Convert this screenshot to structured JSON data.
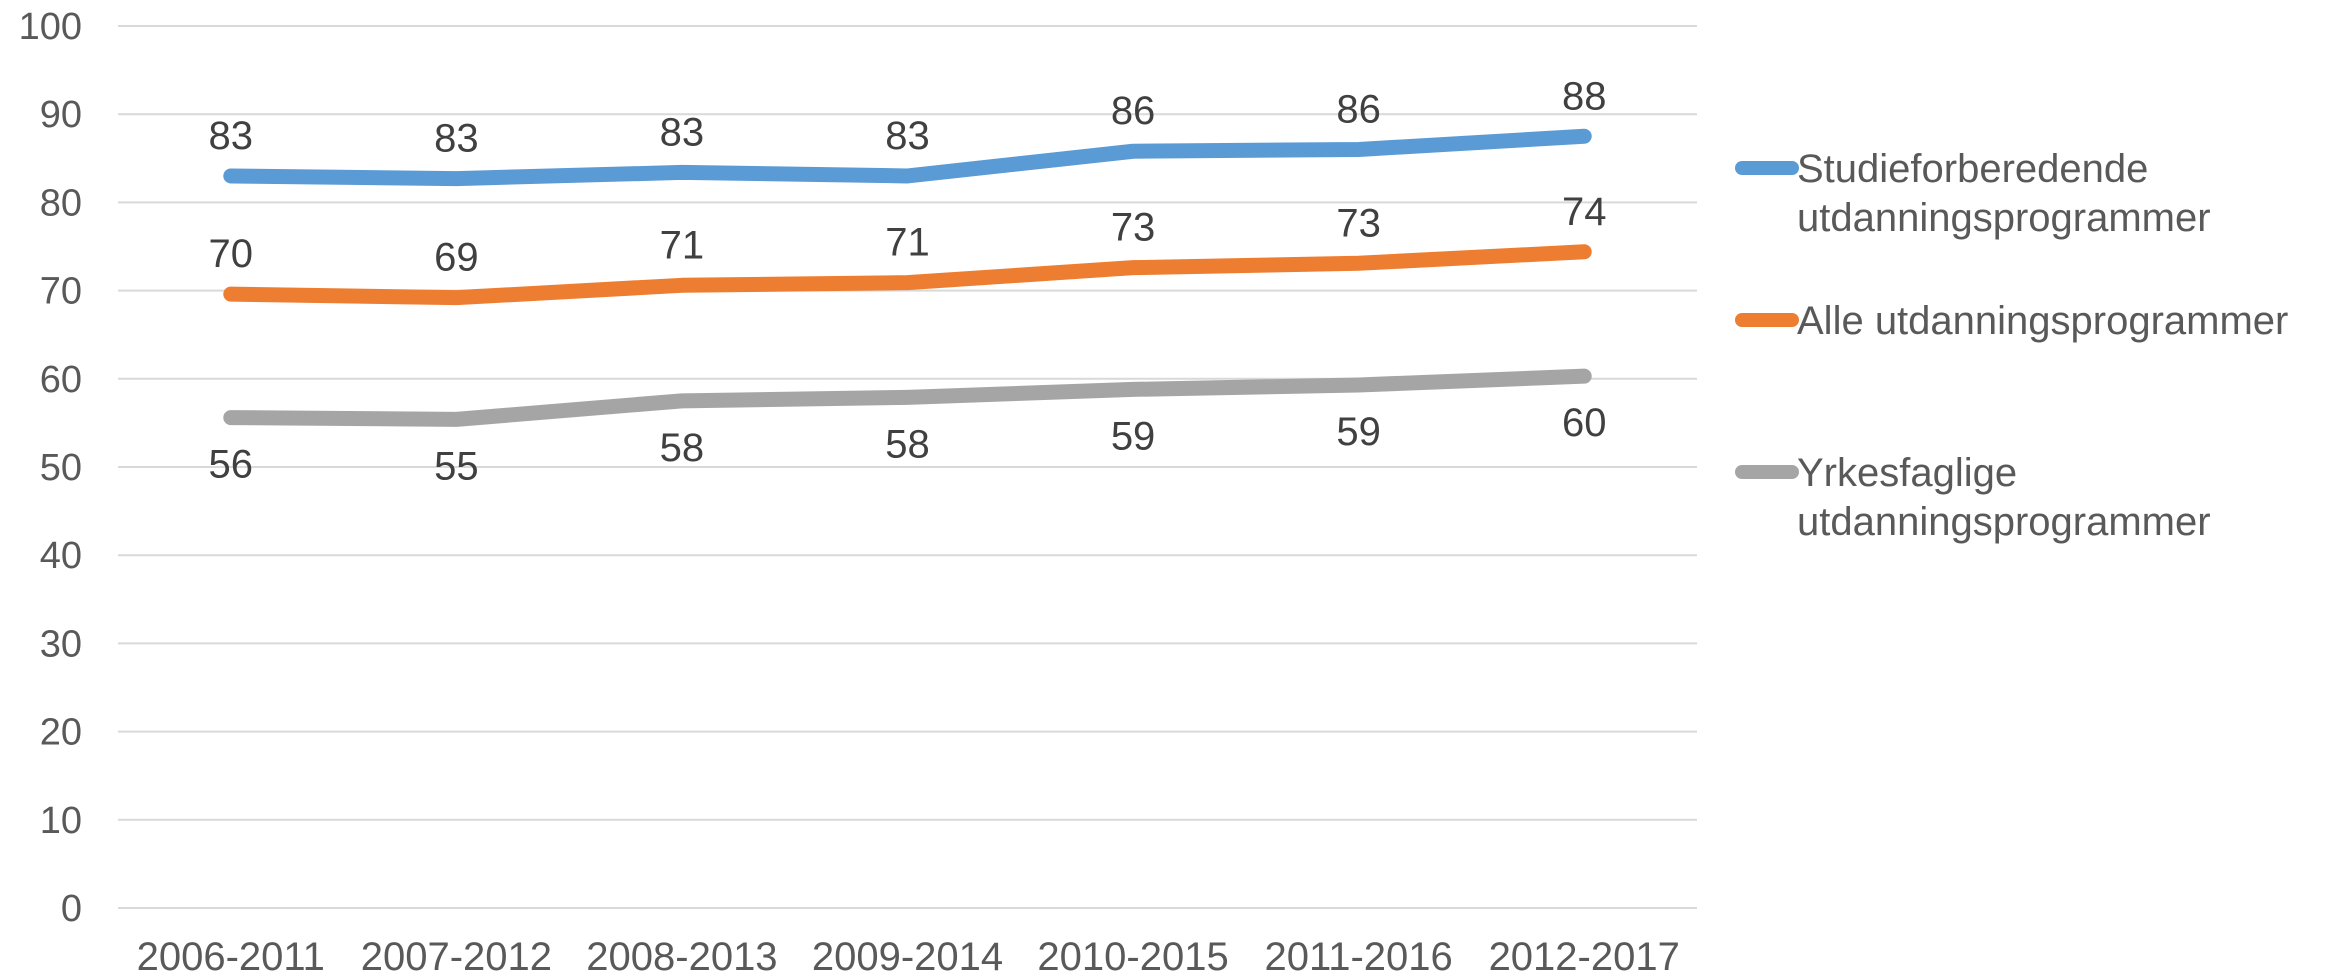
{
  "chart_data": {
    "type": "line",
    "categories": [
      "2006-2011",
      "2007-2012",
      "2008-2013",
      "2009-2014",
      "2010-2015",
      "2011-2016",
      "2012-2017"
    ],
    "ylim": [
      0,
      100
    ],
    "yticks": [
      0,
      10,
      20,
      30,
      40,
      50,
      60,
      70,
      80,
      90,
      100
    ],
    "grid": true,
    "legend_position": "right",
    "series": [
      {
        "name": "Studieforberedende utdanningsprogrammer",
        "legend_lines": [
          "Studieforberedende",
          "utdanningsprogrammer"
        ],
        "color": "#5b9bd5",
        "values": [
          83,
          82.7,
          83.4,
          83,
          85.8,
          86,
          87.5
        ],
        "labels": [
          "83",
          "83",
          "83",
          "83",
          "86",
          "86",
          "88"
        ],
        "label_position": "above"
      },
      {
        "name": "Alle utdanningsprogrammer",
        "legend_lines": [
          "Alle utdanningsprogrammer"
        ],
        "color": "#ed7d31",
        "values": [
          69.6,
          69.2,
          70.6,
          70.9,
          72.6,
          73.1,
          74.4
        ],
        "labels": [
          "70",
          "69",
          "71",
          "71",
          "73",
          "73",
          "74"
        ],
        "label_position": "above"
      },
      {
        "name": "Yrkesfaglige utdanningsprogrammer",
        "legend_lines": [
          "Yrkesfaglige",
          "utdanningsprogrammer"
        ],
        "color": "#a5a5a5",
        "values": [
          55.6,
          55.4,
          57.5,
          57.9,
          58.8,
          59.3,
          60.3
        ],
        "labels": [
          "56",
          "55",
          "58",
          "58",
          "59",
          "59",
          "60"
        ],
        "label_position": "below"
      }
    ]
  }
}
